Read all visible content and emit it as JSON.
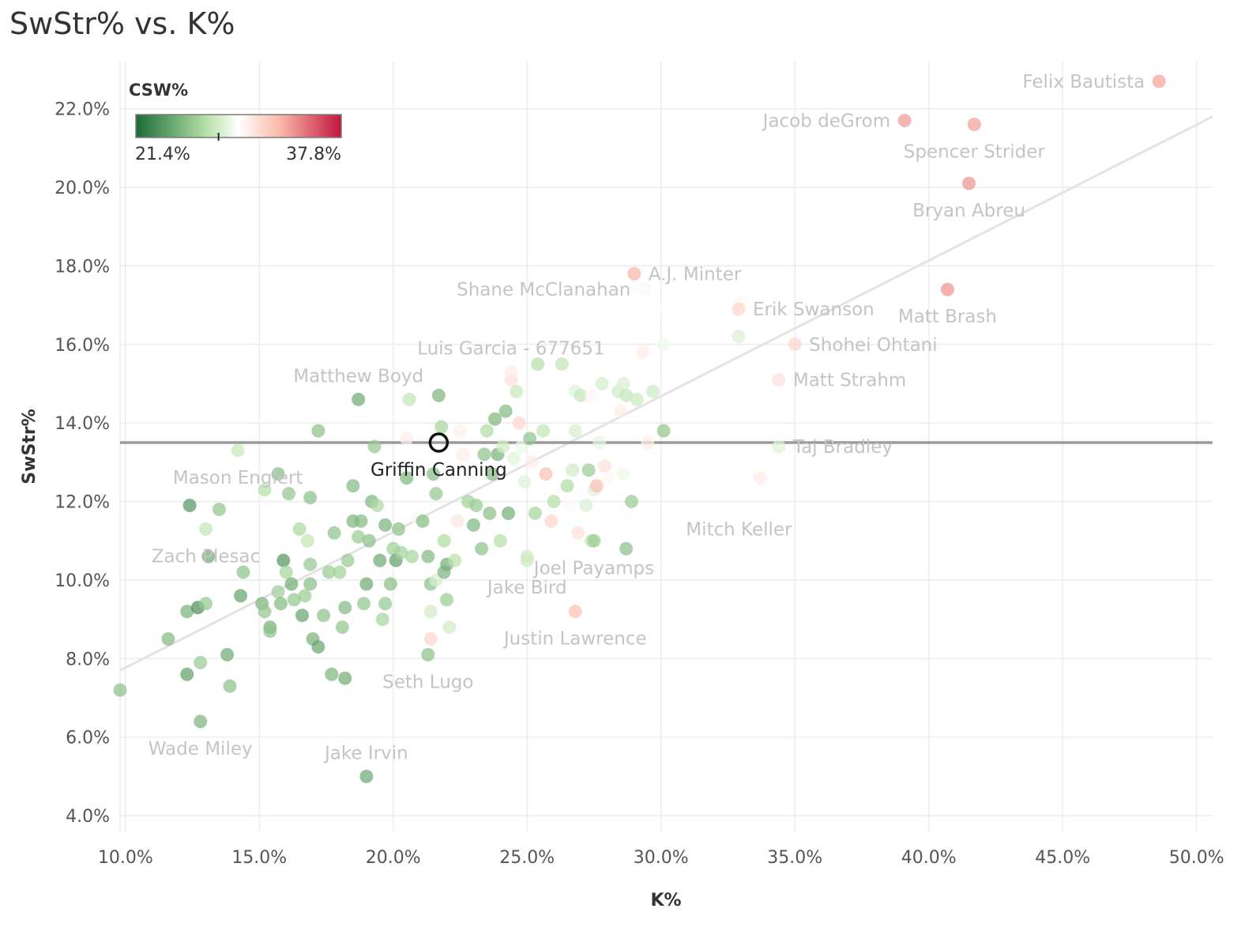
{
  "title": "SwStr% vs. K%",
  "colors": {
    "grid": "#ececec",
    "trend": "#e3e3e3",
    "ref_line": "#9a9a9a",
    "green_dark": "#1a6b35",
    "green_light": "#b8e2aa",
    "white": "#ffffff",
    "red_light": "#fbb8a9",
    "red_dark": "#c2163d",
    "highlight_stroke": "#111111"
  },
  "chart_data": {
    "type": "scatter",
    "xlabel": "K%",
    "ylabel": "SwStr%",
    "xlim": [
      9.8,
      50.6
    ],
    "ylim": [
      3.6,
      23.2
    ],
    "x_ticks": [
      10,
      15,
      20,
      25,
      30,
      35,
      40,
      45,
      50
    ],
    "x_tick_labels": [
      "10.0%",
      "15.0%",
      "20.0%",
      "25.0%",
      "30.0%",
      "35.0%",
      "40.0%",
      "45.0%",
      "50.0%"
    ],
    "y_ticks": [
      4,
      6,
      8,
      10,
      12,
      14,
      16,
      18,
      20,
      22
    ],
    "y_tick_labels": [
      "4.0%",
      "6.0%",
      "8.0%",
      "10.0%",
      "12.0%",
      "14.0%",
      "16.0%",
      "18.0%",
      "20.0%",
      "22.0%"
    ],
    "grid": true,
    "reference_line": {
      "axis": "y",
      "value": 13.5
    },
    "trend_line": {
      "x": [
        9.8,
        50.6
      ],
      "y": [
        7.7,
        21.8
      ]
    },
    "color_legend": {
      "title": "CSW%",
      "min_label": "21.4%",
      "max_label": "37.8%",
      "min": 21.4,
      "max": 37.8,
      "marker": 28.0,
      "placement": "top-left"
    },
    "highlight": {
      "name": "Griffin Canning",
      "x": 21.7,
      "y": 13.5
    },
    "labeled_points": [
      {
        "name": "Felix Bautista",
        "x": 48.6,
        "y": 22.7,
        "csw": 33.5,
        "label_pos": "left"
      },
      {
        "name": "Jacob deGrom",
        "x": 39.1,
        "y": 21.7,
        "csw": 33.8,
        "label_pos": "left"
      },
      {
        "name": "Spencer Strider",
        "x": 41.7,
        "y": 21.6,
        "csw": 33.6,
        "label_pos": "below"
      },
      {
        "name": "Bryan Abreu",
        "x": 41.5,
        "y": 20.1,
        "csw": 34.0,
        "label_pos": "below"
      },
      {
        "name": "A.J. Minter",
        "x": 29.0,
        "y": 17.8,
        "csw": 33.0,
        "label_pos": "right"
      },
      {
        "name": "Shane McClanahan",
        "x": 29.4,
        "y": 17.4,
        "csw": 30.0,
        "label_pos": "left"
      },
      {
        "name": "Erik Swanson",
        "x": 32.9,
        "y": 16.9,
        "csw": 31.5,
        "label_pos": "right"
      },
      {
        "name": "Matt Brash",
        "x": 40.7,
        "y": 17.4,
        "csw": 34.0,
        "label_pos": "below"
      },
      {
        "name": "Shohei Ohtani",
        "x": 35.0,
        "y": 16.0,
        "csw": 31.5,
        "label_pos": "right"
      },
      {
        "name": "Matt Strahm",
        "x": 34.4,
        "y": 15.1,
        "csw": 31.0,
        "label_pos": "right"
      },
      {
        "name": "Luis Garcia - 677651",
        "x": 24.4,
        "y": 15.3,
        "csw": 30.5,
        "label_pos": "above"
      },
      {
        "name": "Matthew Boyd",
        "x": 18.7,
        "y": 14.6,
        "csw": 24.5,
        "label_pos": "above"
      },
      {
        "name": "Taj Bradley",
        "x": 34.4,
        "y": 13.4,
        "csw": 28.5,
        "label_pos": "right"
      },
      {
        "name": "Mason Englert",
        "x": 14.2,
        "y": 13.3,
        "csw": 27.7,
        "label_pos": "below"
      },
      {
        "name": "Zach Plesac",
        "x": 13.0,
        "y": 11.3,
        "csw": 27.5,
        "label_pos": "below"
      },
      {
        "name": "Mitch Keller",
        "x": 30.4,
        "y": 11.3,
        "csw": 29.5,
        "label_pos": "right"
      },
      {
        "name": "Jake Bird",
        "x": 25.0,
        "y": 10.5,
        "csw": 27.9,
        "label_pos": "below"
      },
      {
        "name": "Joel Payamps",
        "x": 27.5,
        "y": 11.0,
        "csw": 26.0,
        "label_pos": "below"
      },
      {
        "name": "Justin Lawrence",
        "x": 26.8,
        "y": 9.2,
        "csw": 32.5,
        "label_pos": "below"
      },
      {
        "name": "Seth Lugo",
        "x": 21.3,
        "y": 8.1,
        "csw": 25.5,
        "label_pos": "below"
      },
      {
        "name": "Wade Miley",
        "x": 12.8,
        "y": 6.4,
        "csw": 25.0,
        "label_pos": "below"
      },
      {
        "name": "Jake Irvin",
        "x": 19.0,
        "y": 5.0,
        "csw": 24.5,
        "label_pos": "above"
      }
    ],
    "points": [
      [
        9.8,
        7.2,
        25.5
      ],
      [
        11.6,
        8.5,
        25.2
      ],
      [
        12.3,
        9.2,
        24.8
      ],
      [
        12.7,
        9.3,
        23.2
      ],
      [
        13.0,
        9.4,
        25.8
      ],
      [
        12.4,
        11.9,
        23.5
      ],
      [
        13.1,
        10.6,
        24.5
      ],
      [
        13.5,
        11.8,
        25.8
      ],
      [
        12.3,
        7.6,
        24.0
      ],
      [
        12.8,
        7.9,
        26.0
      ],
      [
        13.8,
        8.1,
        24.5
      ],
      [
        13.9,
        7.3,
        25.5
      ],
      [
        14.3,
        9.6,
        24.2
      ],
      [
        14.4,
        10.2,
        25.6
      ],
      [
        15.1,
        9.4,
        25.0
      ],
      [
        15.2,
        9.2,
        25.8
      ],
      [
        15.4,
        8.8,
        24.8
      ],
      [
        15.4,
        8.7,
        25.6
      ],
      [
        15.7,
        9.7,
        26.2
      ],
      [
        15.8,
        9.4,
        25.2
      ],
      [
        15.9,
        10.5,
        23.5
      ],
      [
        16.0,
        10.2,
        26.5
      ],
      [
        16.2,
        9.9,
        24.6
      ],
      [
        16.3,
        9.5,
        25.9
      ],
      [
        16.1,
        12.2,
        25.8
      ],
      [
        15.7,
        12.7,
        25.3
      ],
      [
        15.2,
        12.3,
        27.0
      ],
      [
        16.5,
        11.3,
        26.7
      ],
      [
        16.8,
        11.0,
        27.5
      ],
      [
        16.9,
        10.4,
        25.9
      ],
      [
        16.7,
        9.6,
        26.1
      ],
      [
        16.9,
        9.9,
        25.4
      ],
      [
        16.6,
        9.1,
        24.2
      ],
      [
        17.0,
        8.5,
        24.8
      ],
      [
        17.2,
        8.3,
        24.3
      ],
      [
        17.4,
        9.1,
        25.6
      ],
      [
        17.2,
        13.8,
        25.5
      ],
      [
        16.9,
        12.1,
        25.5
      ],
      [
        17.6,
        10.2,
        26.0
      ],
      [
        17.8,
        11.2,
        25.7
      ],
      [
        18.0,
        10.2,
        26.3
      ],
      [
        17.7,
        7.6,
        25.0
      ],
      [
        18.1,
        8.8,
        25.8
      ],
      [
        18.2,
        7.5,
        24.6
      ],
      [
        18.2,
        9.3,
        25.2
      ],
      [
        18.3,
        10.5,
        26.0
      ],
      [
        18.5,
        11.5,
        25.0
      ],
      [
        18.5,
        12.4,
        25.2
      ],
      [
        18.7,
        11.1,
        26.0
      ],
      [
        18.8,
        11.5,
        25.3
      ],
      [
        18.9,
        9.4,
        25.8
      ],
      [
        19.0,
        9.9,
        24.5
      ],
      [
        19.1,
        11.0,
        25.5
      ],
      [
        19.2,
        12.0,
        25.0
      ],
      [
        19.3,
        13.4,
        25.9
      ],
      [
        19.4,
        11.9,
        26.8
      ],
      [
        19.5,
        10.5,
        24.4
      ],
      [
        19.6,
        9.0,
        26.5
      ],
      [
        19.7,
        9.4,
        25.9
      ],
      [
        19.7,
        11.4,
        24.9
      ],
      [
        19.9,
        9.9,
        25.4
      ],
      [
        20.0,
        10.8,
        26.2
      ],
      [
        20.1,
        10.5,
        24.0
      ],
      [
        20.2,
        11.3,
        25.6
      ],
      [
        20.3,
        10.7,
        26.4
      ],
      [
        20.5,
        12.6,
        25.1
      ],
      [
        20.6,
        14.6,
        27.5
      ],
      [
        20.5,
        13.6,
        30.5
      ],
      [
        20.7,
        10.6,
        26.5
      ],
      [
        20.9,
        11.6,
        30.0
      ],
      [
        21.1,
        11.5,
        25.3
      ],
      [
        21.3,
        10.6,
        25.2
      ],
      [
        21.4,
        9.9,
        25.6
      ],
      [
        21.4,
        9.2,
        28.0
      ],
      [
        21.4,
        8.5,
        31.5
      ],
      [
        21.5,
        12.7,
        25.4
      ],
      [
        21.6,
        12.2,
        25.9
      ],
      [
        21.6,
        10.0,
        28.2
      ],
      [
        21.7,
        14.7,
        25.0
      ],
      [
        21.8,
        13.9,
        26.5
      ],
      [
        21.9,
        10.2,
        25.0
      ],
      [
        21.9,
        11.0,
        26.8
      ],
      [
        22.0,
        10.4,
        24.7
      ],
      [
        22.0,
        9.5,
        26.1
      ],
      [
        22.1,
        8.8,
        28.0
      ],
      [
        22.3,
        10.5,
        27.2
      ],
      [
        22.4,
        11.5,
        30.8
      ],
      [
        22.5,
        13.8,
        30.3
      ],
      [
        22.6,
        13.2,
        30.5
      ],
      [
        22.8,
        12.0,
        26.3
      ],
      [
        23.0,
        11.4,
        25.1
      ],
      [
        23.1,
        11.9,
        26.0
      ],
      [
        23.3,
        10.8,
        25.6
      ],
      [
        23.4,
        13.2,
        25.7
      ],
      [
        23.5,
        13.8,
        26.9
      ],
      [
        23.6,
        11.7,
        25.4
      ],
      [
        23.7,
        12.7,
        25.2
      ],
      [
        23.8,
        14.1,
        25.1
      ],
      [
        23.9,
        13.2,
        24.9
      ],
      [
        24.0,
        11.0,
        27.0
      ],
      [
        24.1,
        13.4,
        27.9
      ],
      [
        24.2,
        14.3,
        25.2
      ],
      [
        24.3,
        11.7,
        24.7
      ],
      [
        24.4,
        15.1,
        31.0
      ],
      [
        24.5,
        13.1,
        28.5
      ],
      [
        24.6,
        14.8,
        27.7
      ],
      [
        24.7,
        14.0,
        31.5
      ],
      [
        24.8,
        13.4,
        29.0
      ],
      [
        24.9,
        12.5,
        28.5
      ],
      [
        25.0,
        10.6,
        27.9
      ],
      [
        25.1,
        13.6,
        25.7
      ],
      [
        25.2,
        13.0,
        30.5
      ],
      [
        25.3,
        11.7,
        26.5
      ],
      [
        25.4,
        15.5,
        27.0
      ],
      [
        25.6,
        13.8,
        27.5
      ],
      [
        25.7,
        12.7,
        32.5
      ],
      [
        25.9,
        11.5,
        31.5
      ],
      [
        26.0,
        12.0,
        27.0
      ],
      [
        26.3,
        15.5,
        27.5
      ],
      [
        26.5,
        12.4,
        26.8
      ],
      [
        26.6,
        11.9,
        30.0
      ],
      [
        26.7,
        12.8,
        28.0
      ],
      [
        26.8,
        13.8,
        28.2
      ],
      [
        26.8,
        14.8,
        28.5
      ],
      [
        26.9,
        11.2,
        31.0
      ],
      [
        27.0,
        14.7,
        27.6
      ],
      [
        27.2,
        11.9,
        28.3
      ],
      [
        27.3,
        12.8,
        26.0
      ],
      [
        27.4,
        14.7,
        30.0
      ],
      [
        27.4,
        11.0,
        27.5
      ],
      [
        27.5,
        12.3,
        28.5
      ],
      [
        27.6,
        12.4,
        32.5
      ],
      [
        27.7,
        13.5,
        28.8
      ],
      [
        27.8,
        15.0,
        28.1
      ],
      [
        27.9,
        12.9,
        31.0
      ],
      [
        28.0,
        12.6,
        30.0
      ],
      [
        28.2,
        14.3,
        29.5
      ],
      [
        28.4,
        14.8,
        28.0
      ],
      [
        28.5,
        14.3,
        30.5
      ],
      [
        28.6,
        12.7,
        29.0
      ],
      [
        28.6,
        15.0,
        28.3
      ],
      [
        28.7,
        14.7,
        27.6
      ],
      [
        28.7,
        10.8,
        25.5
      ],
      [
        28.9,
        12.0,
        26.0
      ],
      [
        29.1,
        14.6,
        27.8
      ],
      [
        29.3,
        15.8,
        30.5
      ],
      [
        29.5,
        13.5,
        30.5
      ],
      [
        29.7,
        14.8,
        27.8
      ],
      [
        29.8,
        16.9,
        29.5
      ],
      [
        30.1,
        16.0,
        29.0
      ],
      [
        30.1,
        13.8,
        25.8
      ],
      [
        31.9,
        14.6,
        29.5
      ],
      [
        32.9,
        16.2,
        28.3
      ],
      [
        33.0,
        17.1,
        30.0
      ],
      [
        33.7,
        12.6,
        30.5
      ]
    ]
  }
}
